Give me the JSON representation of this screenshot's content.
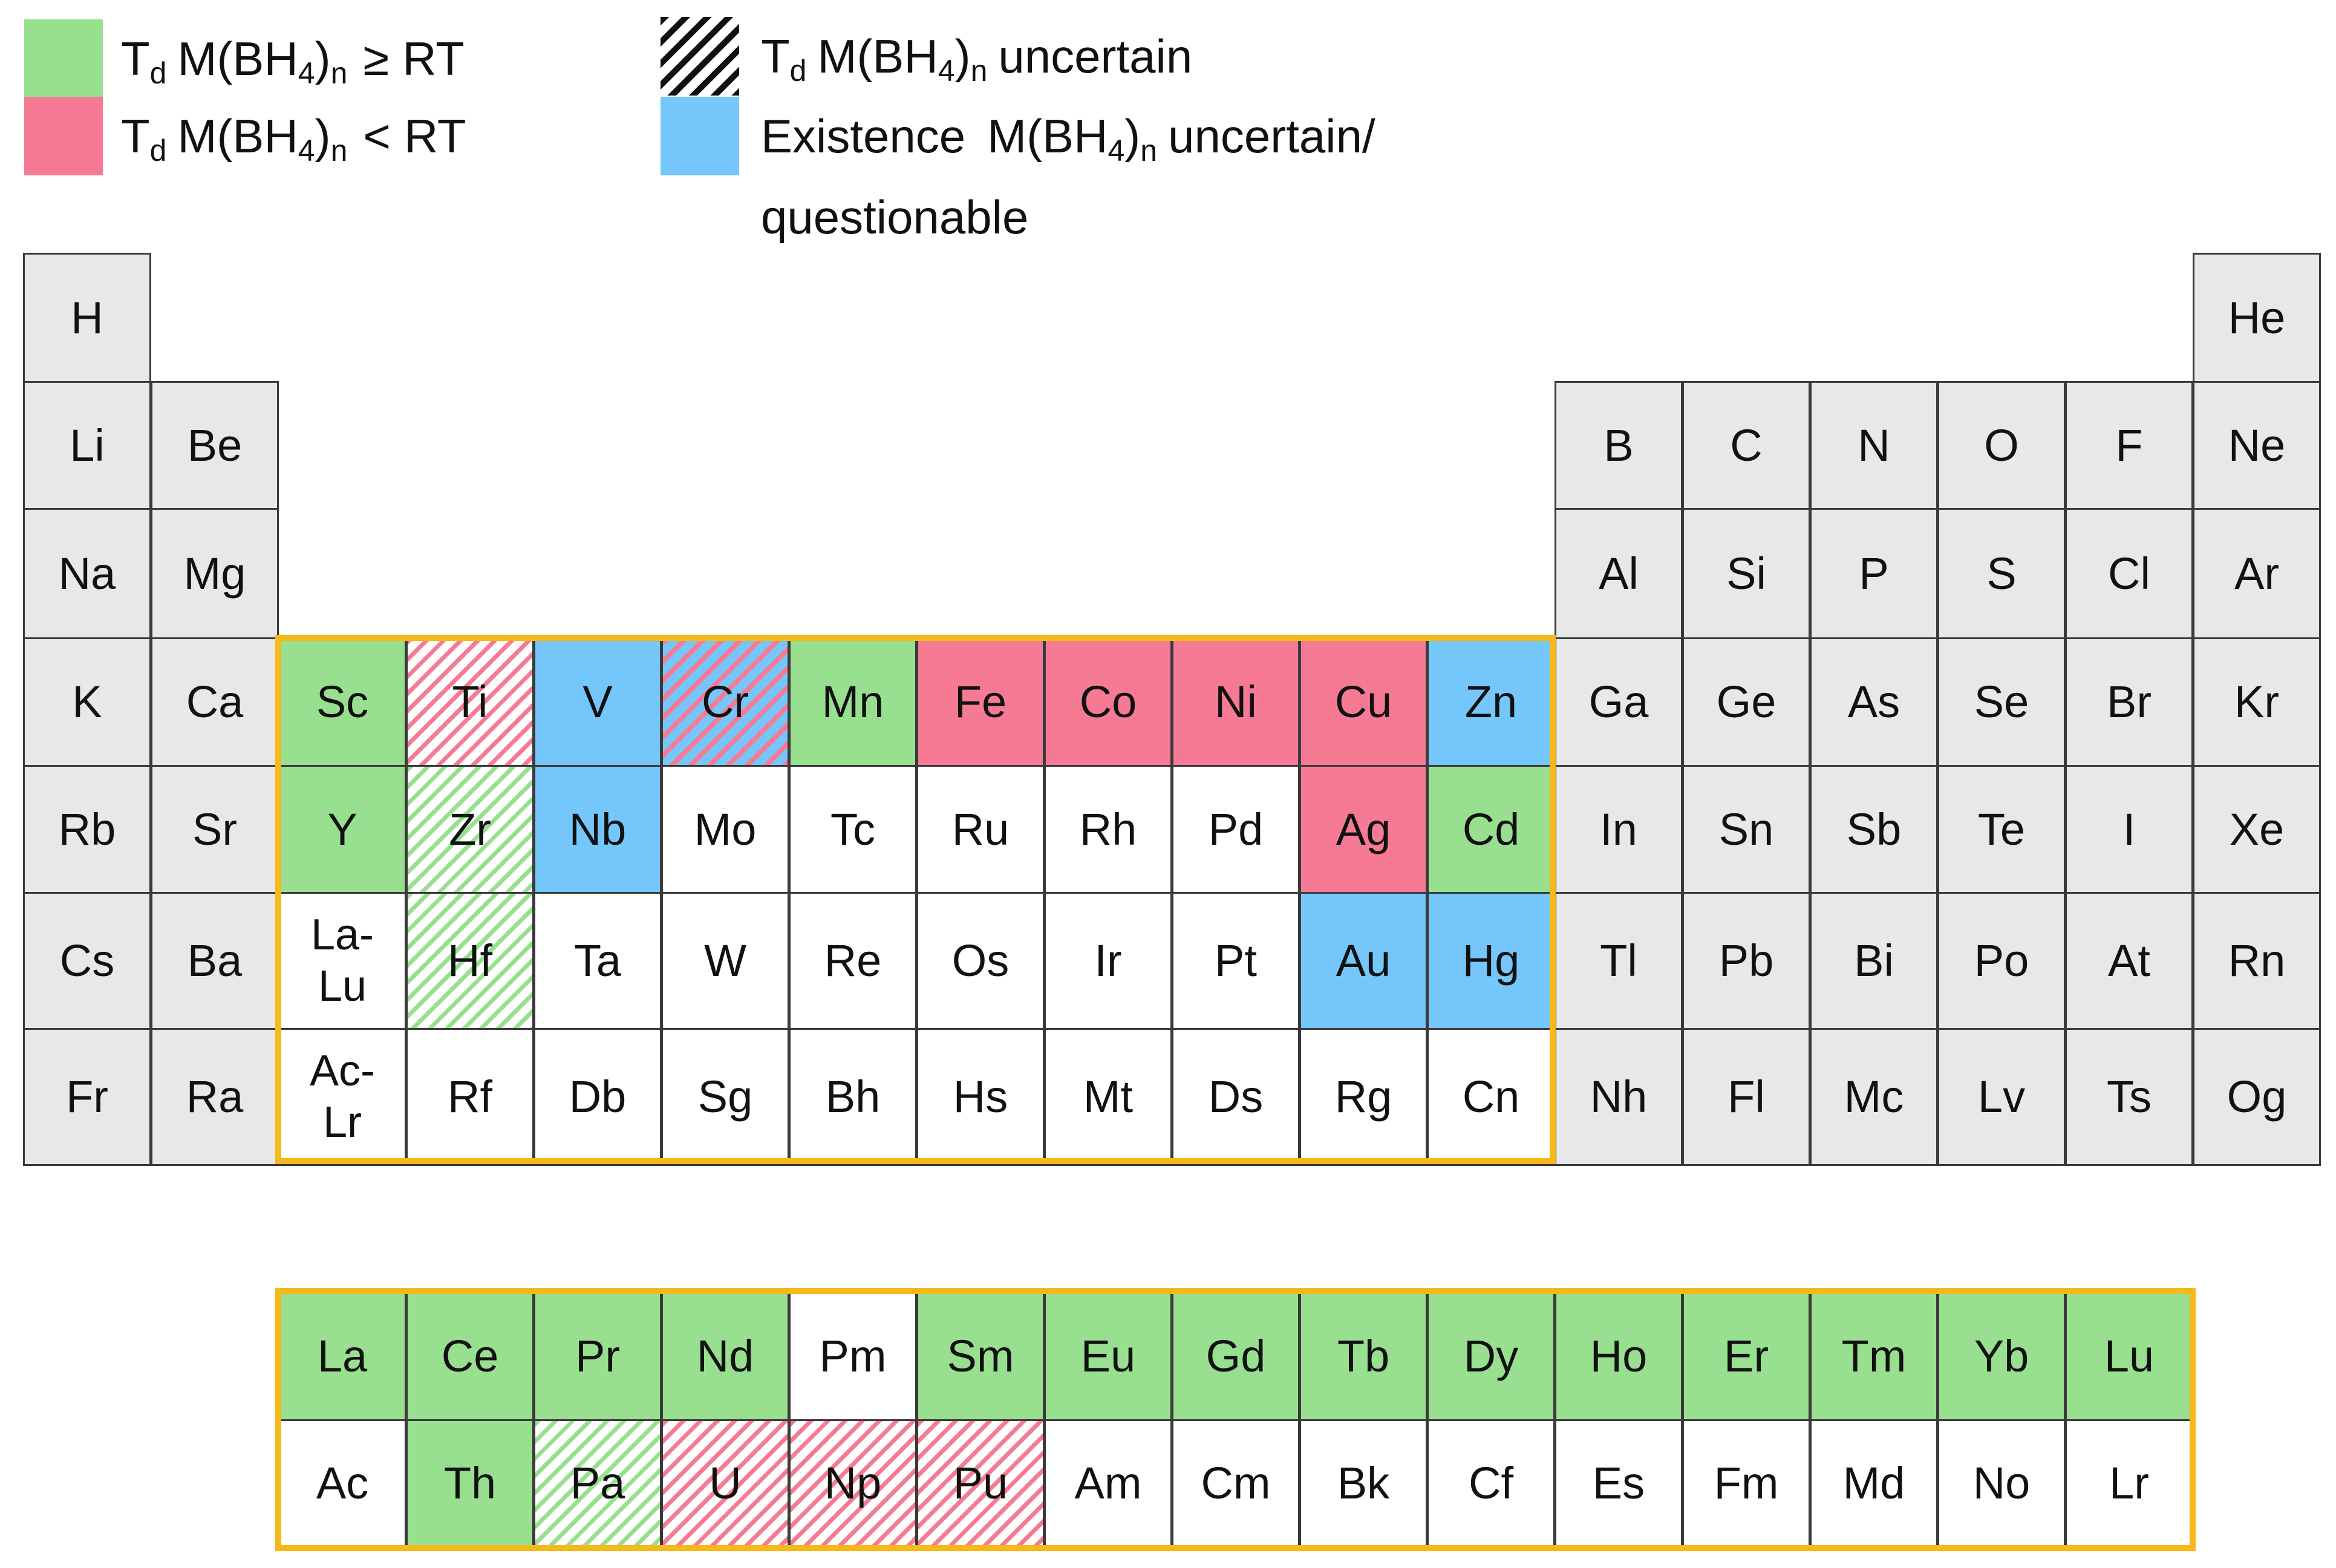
{
  "legend": {
    "items": [
      {
        "swatch": "green",
        "symbol": "T",
        "sub": "d",
        "compound": "M(BH",
        "sub2": "4",
        "close": ")",
        "sub3": "n",
        "relation": "≥",
        "text": "RT"
      },
      {
        "swatch": "red",
        "symbol": "T",
        "sub": "d",
        "compound": "M(BH",
        "sub2": "4",
        "close": ")",
        "sub3": "n",
        "relation": "<",
        "text": "RT"
      },
      {
        "swatch": "hatch",
        "symbol": "T",
        "sub": "d",
        "compound": "M(BH",
        "sub2": "4",
        "close": ")",
        "sub3": "n",
        "text": "uncertain"
      },
      {
        "swatch": "blue",
        "prefix": "Existence",
        "compound": "M(BH",
        "sub2": "4",
        "close": ")",
        "sub3": "n",
        "text": "uncertain/",
        "line2": "questionable"
      }
    ]
  },
  "colors": {
    "green": "#98e090",
    "red": "#f77a95",
    "blue": "#74c6fb",
    "grey": "#e8e8e8",
    "none": "#ffffff",
    "frame": "#f6b81a"
  },
  "main_table": {
    "periods": [
      [
        [
          "H",
          "grey"
        ],
        null,
        null,
        null,
        null,
        null,
        null,
        null,
        null,
        null,
        null,
        null,
        null,
        null,
        null,
        null,
        null,
        [
          "He",
          "grey"
        ]
      ],
      [
        [
          "Li",
          "grey"
        ],
        [
          "Be",
          "grey"
        ],
        null,
        null,
        null,
        null,
        null,
        null,
        null,
        null,
        null,
        null,
        [
          "B",
          "grey"
        ],
        [
          "C",
          "grey"
        ],
        [
          "N",
          "grey"
        ],
        [
          "O",
          "grey"
        ],
        [
          "F",
          "grey"
        ],
        [
          "Ne",
          "grey"
        ]
      ],
      [
        [
          "Na",
          "grey"
        ],
        [
          "Mg",
          "grey"
        ],
        null,
        null,
        null,
        null,
        null,
        null,
        null,
        null,
        null,
        null,
        [
          "Al",
          "grey"
        ],
        [
          "Si",
          "grey"
        ],
        [
          "P",
          "grey"
        ],
        [
          "S",
          "grey"
        ],
        [
          "Cl",
          "grey"
        ],
        [
          "Ar",
          "grey"
        ]
      ],
      [
        [
          "K",
          "grey"
        ],
        [
          "Ca",
          "grey"
        ],
        [
          "Sc",
          "green"
        ],
        [
          "Ti",
          "hatch-red"
        ],
        [
          "V",
          "blue"
        ],
        [
          "Cr",
          "hatch-blue-red"
        ],
        [
          "Mn",
          "green"
        ],
        [
          "Fe",
          "red"
        ],
        [
          "Co",
          "red"
        ],
        [
          "Ni",
          "red"
        ],
        [
          "Cu",
          "red"
        ],
        [
          "Zn",
          "blue"
        ],
        [
          "Ga",
          "grey"
        ],
        [
          "Ge",
          "grey"
        ],
        [
          "As",
          "grey"
        ],
        [
          "Se",
          "grey"
        ],
        [
          "Br",
          "grey"
        ],
        [
          "Kr",
          "grey"
        ]
      ],
      [
        [
          "Rb",
          "grey"
        ],
        [
          "Sr",
          "grey"
        ],
        [
          "Y",
          "green"
        ],
        [
          "Zr",
          "hatch-green"
        ],
        [
          "Nb",
          "blue"
        ],
        [
          "Mo",
          "none"
        ],
        [
          "Tc",
          "none"
        ],
        [
          "Ru",
          "none"
        ],
        [
          "Rh",
          "none"
        ],
        [
          "Pd",
          "none"
        ],
        [
          "Ag",
          "red"
        ],
        [
          "Cd",
          "green"
        ],
        [
          "In",
          "grey"
        ],
        [
          "Sn",
          "grey"
        ],
        [
          "Sb",
          "grey"
        ],
        [
          "Te",
          "grey"
        ],
        [
          "I",
          "grey"
        ],
        [
          "Xe",
          "grey"
        ]
      ],
      [
        [
          "Cs",
          "grey"
        ],
        [
          "Ba",
          "grey"
        ],
        [
          "La-\nLu",
          "none"
        ],
        [
          "Hf",
          "hatch-green"
        ],
        [
          "Ta",
          "none"
        ],
        [
          "W",
          "none"
        ],
        [
          "Re",
          "none"
        ],
        [
          "Os",
          "none"
        ],
        [
          "Ir",
          "none"
        ],
        [
          "Pt",
          "none"
        ],
        [
          "Au",
          "blue"
        ],
        [
          "Hg",
          "blue"
        ],
        [
          "Tl",
          "grey"
        ],
        [
          "Pb",
          "grey"
        ],
        [
          "Bi",
          "grey"
        ],
        [
          "Po",
          "grey"
        ],
        [
          "At",
          "grey"
        ],
        [
          "Rn",
          "grey"
        ]
      ],
      [
        [
          "Fr",
          "grey"
        ],
        [
          "Ra",
          "grey"
        ],
        [
          "Ac-\nLr",
          "none"
        ],
        [
          "Rf",
          "none"
        ],
        [
          "Db",
          "none"
        ],
        [
          "Sg",
          "none"
        ],
        [
          "Bh",
          "none"
        ],
        [
          "Hs",
          "none"
        ],
        [
          "Mt",
          "none"
        ],
        [
          "Ds",
          "none"
        ],
        [
          "Rg",
          "none"
        ],
        [
          "Cn",
          "none"
        ],
        [
          "Nh",
          "grey"
        ],
        [
          "Fl",
          "grey"
        ],
        [
          "Mc",
          "grey"
        ],
        [
          "Lv",
          "grey"
        ],
        [
          "Ts",
          "grey"
        ],
        [
          "Og",
          "grey"
        ]
      ]
    ]
  },
  "f_block": {
    "rows": [
      [
        [
          "La",
          "green"
        ],
        [
          "Ce",
          "green"
        ],
        [
          "Pr",
          "green"
        ],
        [
          "Nd",
          "green"
        ],
        [
          "Pm",
          "none"
        ],
        [
          "Sm",
          "green"
        ],
        [
          "Eu",
          "green"
        ],
        [
          "Gd",
          "green"
        ],
        [
          "Tb",
          "green"
        ],
        [
          "Dy",
          "green"
        ],
        [
          "Ho",
          "green"
        ],
        [
          "Er",
          "green"
        ],
        [
          "Tm",
          "green"
        ],
        [
          "Yb",
          "green"
        ],
        [
          "Lu",
          "green"
        ]
      ],
      [
        [
          "Ac",
          "none"
        ],
        [
          "Th",
          "green"
        ],
        [
          "Pa",
          "hatch-green"
        ],
        [
          "U",
          "hatch-red"
        ],
        [
          "Np",
          "hatch-red"
        ],
        [
          "Pu",
          "hatch-red"
        ],
        [
          "Am",
          "none"
        ],
        [
          "Cm",
          "none"
        ],
        [
          "Bk",
          "none"
        ],
        [
          "Cf",
          "none"
        ],
        [
          "Es",
          "none"
        ],
        [
          "Fm",
          "none"
        ],
        [
          "Md",
          "none"
        ],
        [
          "No",
          "none"
        ],
        [
          "Lr",
          "none"
        ]
      ]
    ]
  }
}
